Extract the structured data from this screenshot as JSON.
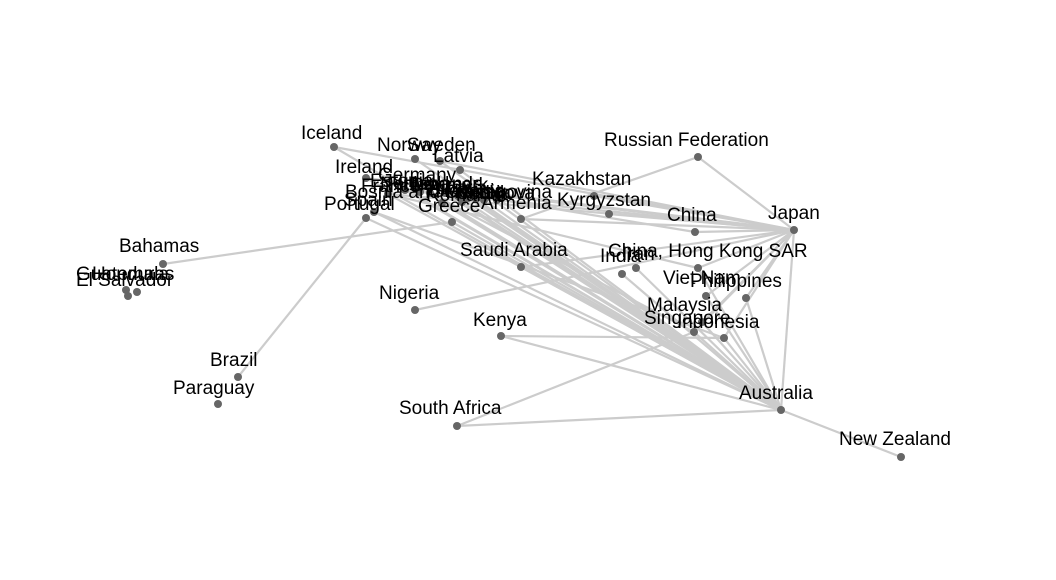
{
  "diagram": {
    "type": "network-graph",
    "colors": {
      "edge": "#cccccc",
      "node": "#666666",
      "label": "#000000",
      "background": "#ffffff"
    },
    "nodes": [
      {
        "id": "iceland",
        "label": "Iceland"
      },
      {
        "id": "norway",
        "label": "Norway"
      },
      {
        "id": "sweden",
        "label": "Sweden"
      },
      {
        "id": "latvia",
        "label": "Latvia"
      },
      {
        "id": "ireland",
        "label": "Ireland"
      },
      {
        "id": "germany",
        "label": "Germany"
      },
      {
        "id": "estonia",
        "label": "Estonia"
      },
      {
        "id": "finland",
        "label": "Finland"
      },
      {
        "id": "france",
        "label": "France"
      },
      {
        "id": "netherlands",
        "label": "Netherlands"
      },
      {
        "id": "denmark",
        "label": "Denmark"
      },
      {
        "id": "austria",
        "label": "Austria"
      },
      {
        "id": "slovenia",
        "label": "Slovenia"
      },
      {
        "id": "croatia",
        "label": "Croatia"
      },
      {
        "id": "serbia",
        "label": "Serbia"
      },
      {
        "id": "moldova",
        "label": "Moldova"
      },
      {
        "id": "romania",
        "label": "Romania"
      },
      {
        "id": "bosnia",
        "label": "Bosnia and Herzegovina"
      },
      {
        "id": "spain",
        "label": "Spain"
      },
      {
        "id": "portugal",
        "label": "Portugal"
      },
      {
        "id": "greece",
        "label": "Greece"
      },
      {
        "id": "armenia",
        "label": "Armenia"
      },
      {
        "id": "kazakhstan",
        "label": "Kazakhstan"
      },
      {
        "id": "kyrgyzstan",
        "label": "Kyrgyzstan"
      },
      {
        "id": "russia",
        "label": "Russian Federation"
      },
      {
        "id": "china",
        "label": "China"
      },
      {
        "id": "japan",
        "label": "Japan"
      },
      {
        "id": "hongkong",
        "label": "China, Hong Kong SAR"
      },
      {
        "id": "india",
        "label": "India"
      },
      {
        "id": "iran",
        "label": "Iran"
      },
      {
        "id": "saudiarabia",
        "label": "Saudi Arabia"
      },
      {
        "id": "vietnam",
        "label": "Viet Nam"
      },
      {
        "id": "philippines",
        "label": "Philippines"
      },
      {
        "id": "malaysia",
        "label": "Malaysia"
      },
      {
        "id": "singapore",
        "label": "Singapore"
      },
      {
        "id": "indonesia",
        "label": "Indonesia"
      },
      {
        "id": "australia",
        "label": "Australia"
      },
      {
        "id": "newzealand",
        "label": "New Zealand"
      },
      {
        "id": "bahamas",
        "label": "Bahamas"
      },
      {
        "id": "guatemala",
        "label": "Guatemala"
      },
      {
        "id": "honduras",
        "label": "Honduras"
      },
      {
        "id": "elsalvador",
        "label": "El Salvador"
      },
      {
        "id": "nigeria",
        "label": "Nigeria"
      },
      {
        "id": "kenya",
        "label": "Kenya"
      },
      {
        "id": "southafrica",
        "label": "South Africa"
      },
      {
        "id": "brazil",
        "label": "Brazil"
      },
      {
        "id": "paraguay",
        "label": "Paraguay"
      }
    ],
    "edges": [
      [
        "iceland",
        "australia"
      ],
      [
        "iceland",
        "japan"
      ],
      [
        "sweden",
        "japan"
      ],
      [
        "sweden",
        "australia"
      ],
      [
        "norway",
        "australia"
      ],
      [
        "latvia",
        "australia"
      ],
      [
        "ireland",
        "australia"
      ],
      [
        "ireland",
        "japan"
      ],
      [
        "germany",
        "japan"
      ],
      [
        "germany",
        "australia"
      ],
      [
        "germany",
        "china"
      ],
      [
        "france",
        "japan"
      ],
      [
        "france",
        "australia"
      ],
      [
        "france",
        "hongkong"
      ],
      [
        "netherlands",
        "australia"
      ],
      [
        "netherlands",
        "singapore"
      ],
      [
        "denmark",
        "australia"
      ],
      [
        "finland",
        "japan"
      ],
      [
        "estonia",
        "australia"
      ],
      [
        "austria",
        "australia"
      ],
      [
        "slovenia",
        "australia"
      ],
      [
        "croatia",
        "australia"
      ],
      [
        "serbia",
        "australia"
      ],
      [
        "moldova",
        "japan"
      ],
      [
        "romania",
        "australia"
      ],
      [
        "bosnia",
        "australia"
      ],
      [
        "spain",
        "australia"
      ],
      [
        "spain",
        "indonesia"
      ],
      [
        "portugal",
        "brazil"
      ],
      [
        "portugal",
        "australia"
      ],
      [
        "greece",
        "australia"
      ],
      [
        "greece",
        "bahamas"
      ],
      [
        "armenia",
        "russia"
      ],
      [
        "armenia",
        "japan"
      ],
      [
        "kazakhstan",
        "japan"
      ],
      [
        "kyrgyzstan",
        "japan"
      ],
      [
        "china",
        "japan"
      ],
      [
        "russia",
        "japan"
      ],
      [
        "japan",
        "australia"
      ],
      [
        "japan",
        "hongkong"
      ],
      [
        "japan",
        "philippines"
      ],
      [
        "japan",
        "vietnam"
      ],
      [
        "japan",
        "saudiarabia"
      ],
      [
        "japan",
        "singapore"
      ],
      [
        "japan",
        "malaysia"
      ],
      [
        "japan",
        "indonesia"
      ],
      [
        "hongkong",
        "australia"
      ],
      [
        "india",
        "australia"
      ],
      [
        "iran",
        "australia"
      ],
      [
        "saudiarabia",
        "australia"
      ],
      [
        "vietnam",
        "australia"
      ],
      [
        "philippines",
        "australia"
      ],
      [
        "malaysia",
        "australia"
      ],
      [
        "singapore",
        "australia"
      ],
      [
        "indonesia",
        "australia"
      ],
      [
        "australia",
        "newzealand"
      ],
      [
        "australia",
        "southafrica"
      ],
      [
        "japan",
        "nigeria"
      ],
      [
        "singapore",
        "southafrica"
      ],
      [
        "indonesia",
        "kenya"
      ],
      [
        "kenya",
        "australia"
      ]
    ]
  }
}
